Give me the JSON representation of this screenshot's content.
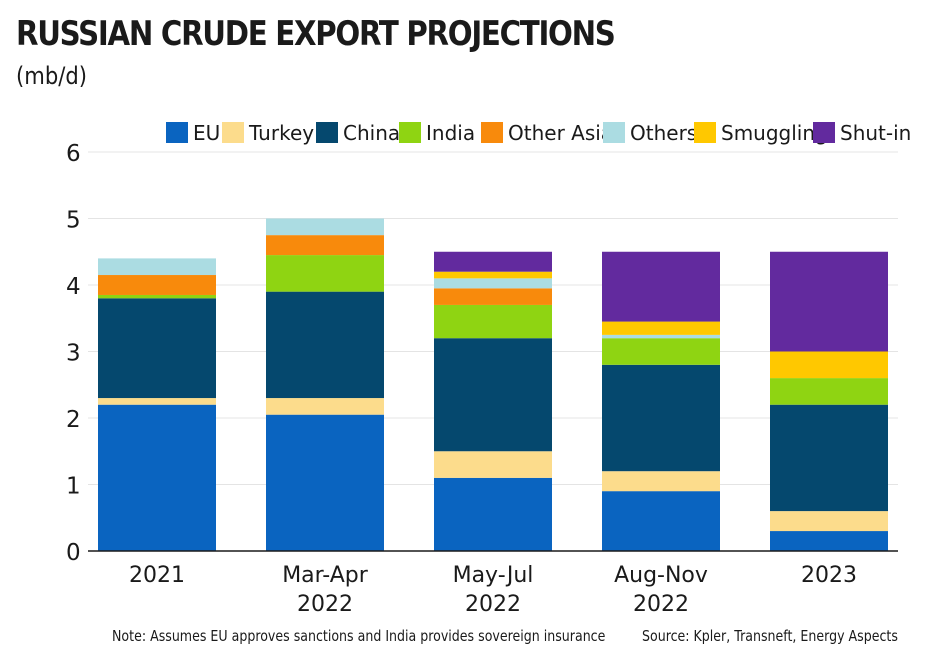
{
  "title": "RUSSIAN CRUDE EXPORT PROJECTIONS",
  "subtitle": "(mb/d)",
  "note": "Note: Assumes EU approves sanctions and India provides sovereign insurance",
  "source": "Source: Kpler, Transneft, Energy Aspects",
  "chart_data": {
    "type": "bar",
    "stacked": true,
    "categories": [
      [
        "2021"
      ],
      [
        "Mar-Apr",
        "2022"
      ],
      [
        "May-Jul",
        "2022"
      ],
      [
        "Aug-Nov",
        "2022"
      ],
      [
        "2023"
      ]
    ],
    "ylim": [
      0,
      6
    ],
    "yticks": [
      0,
      1,
      2,
      3,
      4,
      5,
      6
    ],
    "grid": true,
    "legend_position": "top-right",
    "series": [
      {
        "name": "EU",
        "color": "#0a64c0",
        "values": [
          2.2,
          2.05,
          1.1,
          0.9,
          0.3
        ]
      },
      {
        "name": "Turkey",
        "color": "#fcdc8c",
        "values": [
          0.1,
          0.25,
          0.4,
          0.3,
          0.3
        ]
      },
      {
        "name": "China",
        "color": "#05486e",
        "values": [
          1.5,
          1.6,
          1.7,
          1.6,
          1.6
        ]
      },
      {
        "name": "India",
        "color": "#8fd412",
        "values": [
          0.05,
          0.55,
          0.5,
          0.4,
          0.4
        ]
      },
      {
        "name": "Other Asia",
        "color": "#f88a0c",
        "values": [
          0.3,
          0.3,
          0.25,
          0.0,
          0.0
        ]
      },
      {
        "name": "Others",
        "color": "#abdce2",
        "values": [
          0.25,
          0.25,
          0.15,
          0.05,
          0.0
        ]
      },
      {
        "name": "Smuggling",
        "color": "#ffc800",
        "values": [
          0.0,
          0.0,
          0.1,
          0.2,
          0.4
        ]
      },
      {
        "name": "Shut-in",
        "color": "#622a9e",
        "values": [
          0.0,
          0.0,
          0.3,
          1.05,
          1.5
        ]
      }
    ]
  }
}
